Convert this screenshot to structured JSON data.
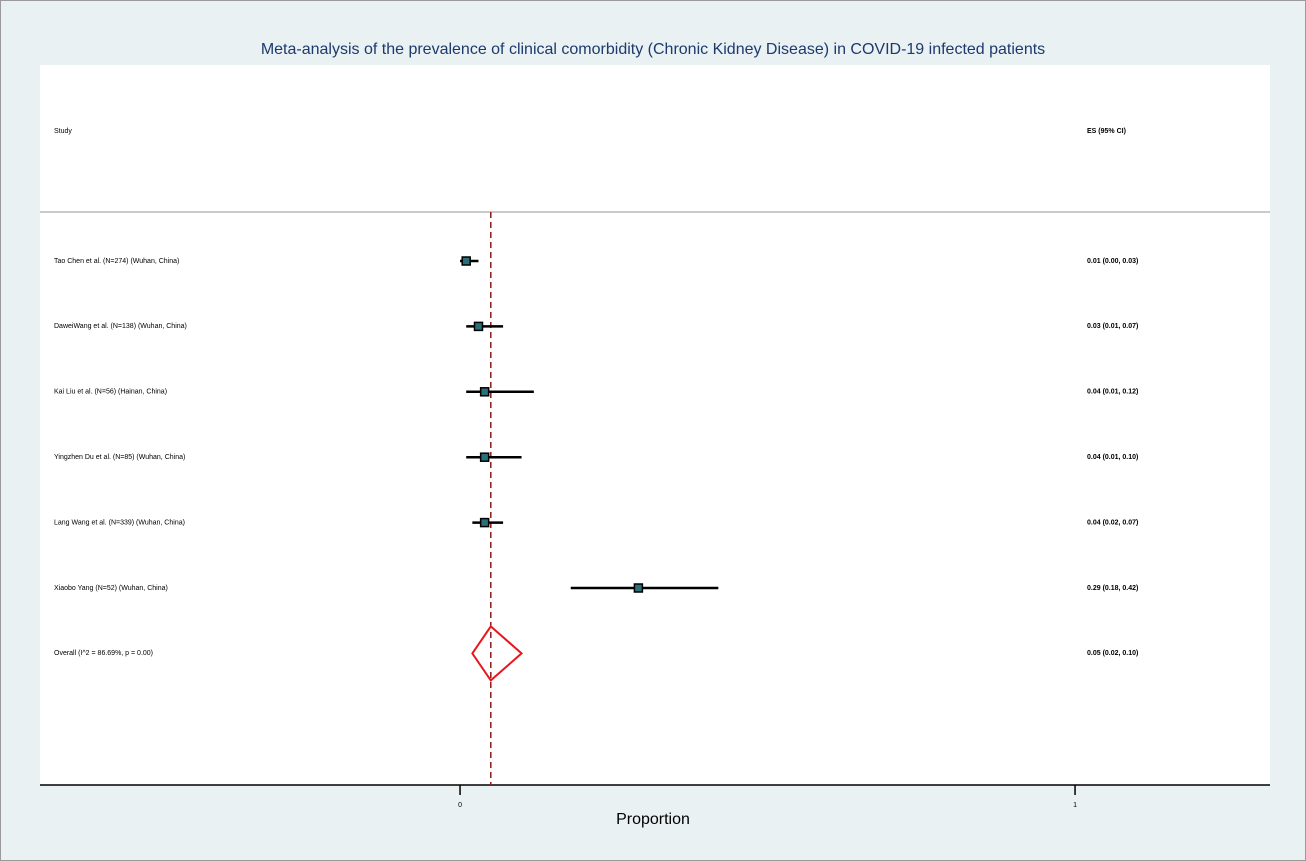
{
  "chart_data": {
    "type": "forest",
    "title": "Meta-analysis of the prevalence of clinical comorbidity (Chronic Kidney Disease) in COVID-19 infected patients",
    "x_label": "Proportion",
    "study_header": "Study",
    "es_header": "ES (95% CI)",
    "categories": [
      "Tao Chen et al. (N=274) (Wuhan, China)",
      "DaweiWang et al. (N=138) (Wuhan, China)",
      "Kai Liu et al. (N=56) (Hainan, China)",
      "Yingzhen Du et al. (N=85) (Wuhan, China)",
      "Lang Wang et al. (N=339) (Wuhan, China)",
      "Xiaobo Yang (N=52) (Wuhan, China)"
    ],
    "values": [
      0.01,
      0.03,
      0.04,
      0.04,
      0.04,
      0.29
    ],
    "lower": [
      0.0,
      0.01,
      0.01,
      0.01,
      0.02,
      0.18
    ],
    "upper": [
      0.03,
      0.07,
      0.12,
      0.1,
      0.07,
      0.42
    ],
    "value_labels": [
      "0.01 (0.00, 0.03)",
      "0.03 (0.01, 0.07)",
      "0.04 (0.01, 0.12)",
      "0.04 (0.01, 0.10)",
      "0.04 (0.02, 0.07)",
      "0.29 (0.18, 0.42)"
    ],
    "overall": {
      "label": "Overall  (I^2 = 86.69%, p = 0.00)",
      "value": 0.05,
      "lower": 0.02,
      "upper": 0.1,
      "value_label": "0.05 (0.02, 0.10)"
    },
    "xlim": [
      -0.683,
      1.317
    ],
    "xticks": [
      0,
      1
    ],
    "color": "#000000",
    "overall_color": "#e8161b",
    "reference_color": "#8b1a1a"
  }
}
